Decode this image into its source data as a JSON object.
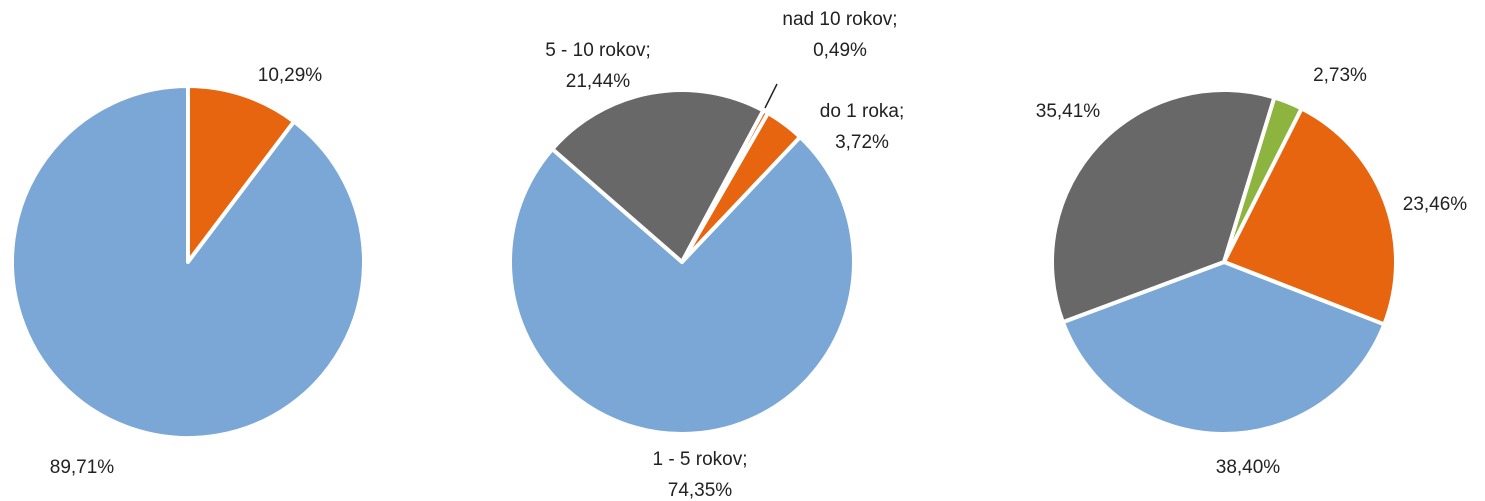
{
  "chart_data": [
    {
      "type": "pie",
      "categories": [
        null,
        null
      ],
      "values": [
        10.29,
        89.71
      ],
      "value_labels": [
        "10,29%",
        "89,71%"
      ],
      "colors": [
        "#e8650f",
        "#7ba7d6"
      ]
    },
    {
      "type": "pie",
      "categories": [
        "do 1 roka;",
        "1 - 5 rokov;",
        "5 - 10 rokov;",
        "nad 10 rokov;"
      ],
      "values": [
        3.72,
        74.35,
        21.44,
        0.49
      ],
      "value_labels": [
        "3,72%",
        "74,35%",
        "21,44%",
        "0,49%"
      ],
      "colors": [
        "#e8650f",
        "#7ba7d6",
        "#686868",
        "#e8650f"
      ]
    },
    {
      "type": "pie",
      "categories": [
        null,
        null,
        null,
        null
      ],
      "values": [
        2.73,
        23.46,
        38.4,
        35.41
      ],
      "value_labels": [
        "2,73%",
        "23,46%",
        "38,40%",
        "35,41%"
      ],
      "colors": [
        "#8db43e",
        "#e8650f",
        "#7ba7d6",
        "#686868"
      ]
    }
  ]
}
